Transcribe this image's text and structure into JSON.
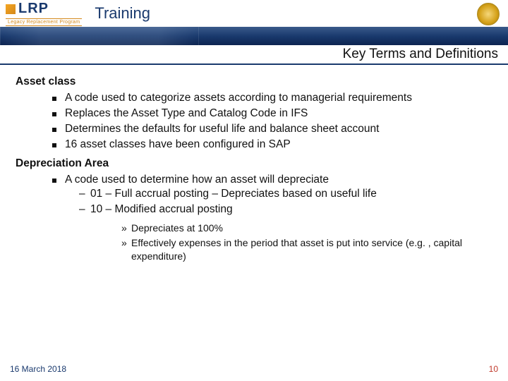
{
  "header": {
    "logo_text": "LRP",
    "logo_tagline": "Legacy Replacement Program",
    "title": "Training",
    "bar_color": "#1a3a6e",
    "seal_name": "org-seal-icon"
  },
  "subtitle": "Key Terms and Definitions",
  "terms": [
    {
      "heading": "Asset class",
      "bullets": [
        {
          "text": "A code used to categorize assets according to managerial requirements"
        },
        {
          "text": "Replaces the Asset Type and Catalog Code in IFS"
        },
        {
          "text": "Determines the defaults for useful life and balance sheet account"
        },
        {
          "text": "16 asset classes have been configured in SAP"
        }
      ]
    },
    {
      "heading": "Depreciation Area",
      "bullets": [
        {
          "text": "A code used to determine how an asset will depreciate",
          "sub": [
            {
              "text": "01 – Full accrual posting – Depreciates based on useful life"
            },
            {
              "text": "10 – Modified accrual posting",
              "sub": [
                {
                  "text": "Depreciates at 100%"
                },
                {
                  "text": "Effectively expenses in the period that asset is put into service (e.g. , capital expenditure)"
                }
              ]
            }
          ]
        }
      ]
    }
  ],
  "footer": {
    "date": "16 March 2018",
    "page": "10"
  },
  "style": {
    "body_fontsize": 15.5,
    "heading_color": "#111111",
    "accent_color": "#1a3a6e",
    "page_number_color": "#c0392b",
    "background_color": "#ffffff"
  }
}
